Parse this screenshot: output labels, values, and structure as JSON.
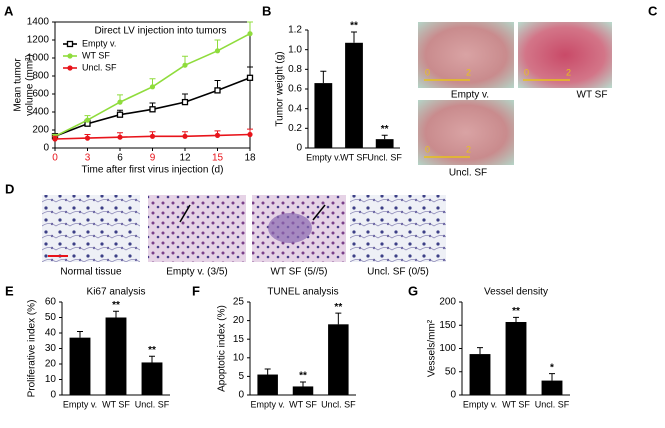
{
  "chart_data": [
    {
      "type": "line",
      "panel_label": "A",
      "title": "Direct LV injection into tumors",
      "xlabel": "Time after first virus injection (d)",
      "ylabel": [
        "Mean tumor",
        "volume (mm³)"
      ],
      "x": [
        0,
        3,
        6,
        9,
        12,
        15,
        18
      ],
      "series": [
        {
          "name": "Empty v.",
          "color": "#000000",
          "marker": "open-square",
          "values": [
            130,
            270,
            370,
            430,
            510,
            640,
            780
          ],
          "errors": [
            20,
            40,
            50,
            70,
            90,
            110,
            120
          ]
        },
        {
          "name": "WT SF",
          "color": "#8fdc3c",
          "marker": "filled-circle",
          "values": [
            130,
            310,
            510,
            680,
            920,
            1080,
            1270
          ],
          "errors": [
            20,
            50,
            80,
            90,
            100,
            120,
            130
          ]
        },
        {
          "name": "Uncl. SF",
          "color": "#e8141b",
          "marker": "filled-circle",
          "values": [
            100,
            110,
            120,
            130,
            130,
            140,
            150
          ],
          "errors": [
            30,
            40,
            50,
            50,
            50,
            50,
            60
          ]
        }
      ],
      "xlim": [
        0,
        18
      ],
      "xticks": [
        0,
        3,
        6,
        9,
        12,
        15,
        18
      ],
      "xtick_colors": [
        "#e8141b",
        "#e8141b",
        "#000000",
        "#e8141b",
        "#000000",
        "#e8141b",
        "#000000"
      ],
      "ylim": [
        0,
        1400
      ],
      "yticks": [
        0,
        200,
        400,
        600,
        800,
        1000,
        1200,
        1400
      ]
    },
    {
      "type": "bar",
      "panel_label": "B",
      "ylabel": "Tumor weight (g)",
      "categories": [
        "Empty v.",
        "WT SF",
        "Uncl. SF"
      ],
      "values": [
        0.66,
        1.07,
        0.09
      ],
      "errors": [
        0.12,
        0.11,
        0.04
      ],
      "significance": [
        null,
        "**",
        "**"
      ],
      "color": "#000000",
      "ylim": [
        0,
        1.2
      ],
      "yticks": [
        0,
        0.2,
        0.4,
        0.6,
        0.8,
        {
          "value": 1,
          "label": "1.0"
        },
        1.2
      ]
    },
    {
      "type": "bar",
      "panel_label": "E",
      "title": "Ki67 analysis",
      "ylabel": "Proliferative index (%)",
      "categories": [
        "Empty v.",
        "WT SF",
        "Uncl. SF"
      ],
      "values": [
        37,
        50,
        21
      ],
      "errors": [
        4,
        4,
        4
      ],
      "significance": [
        null,
        "**",
        "**"
      ],
      "color": "#000000",
      "ylim": [
        0,
        60
      ],
      "yticks": [
        0,
        10,
        20,
        30,
        40,
        50,
        60
      ]
    },
    {
      "type": "bar",
      "panel_label": "F",
      "title": "TUNEL analysis",
      "ylabel": "Apoptotic index (%)",
      "categories": [
        "Empty v.",
        "WT SF",
        "Uncl. SF"
      ],
      "values": [
        5.5,
        2.3,
        19
      ],
      "errors": [
        1.5,
        1.2,
        3
      ],
      "significance": [
        null,
        "**",
        "**"
      ],
      "color": "#000000",
      "ylim": [
        0,
        25
      ],
      "yticks": [
        0,
        5,
        10,
        15,
        20,
        25
      ]
    },
    {
      "type": "bar",
      "panel_label": "G",
      "title": "Vessel density",
      "ylabel": "Vessels/mm²",
      "categories": [
        "Empty v.",
        "WT SF",
        "Uncl. SF"
      ],
      "values": [
        88,
        157,
        31
      ],
      "errors": [
        14,
        10,
        15
      ],
      "significance": [
        null,
        "**",
        "*"
      ],
      "color": "#000000",
      "ylim": [
        0,
        200
      ],
      "yticks": [
        0,
        50,
        100,
        150,
        200
      ]
    }
  ],
  "figure_panels": {
    "C": {
      "label": "C",
      "photos": [
        "Empty v.",
        "WT SF",
        "Uncl. SF"
      ],
      "scale": [
        "0",
        "2"
      ]
    },
    "D": {
      "label": "D",
      "images": [
        "Normal tissue",
        "Empty v. (3/5)",
        "WT SF (5//5)",
        "Uncl. SF (0/5)"
      ]
    }
  }
}
